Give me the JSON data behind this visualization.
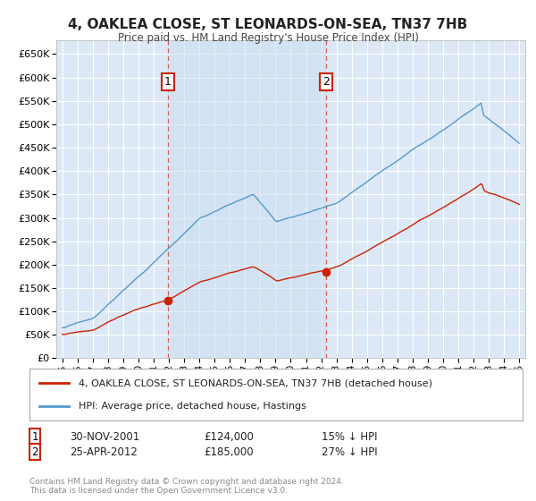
{
  "title": "4, OAKLEA CLOSE, ST LEONARDS-ON-SEA, TN37 7HB",
  "subtitle": "Price paid vs. HM Land Registry's House Price Index (HPI)",
  "legend_property": "4, OAKLEA CLOSE, ST LEONARDS-ON-SEA, TN37 7HB (detached house)",
  "legend_hpi": "HPI: Average price, detached house, Hastings",
  "footer": "Contains HM Land Registry data © Crown copyright and database right 2024.\nThis data is licensed under the Open Government Licence v3.0.",
  "sale1_label": "1",
  "sale1_date": "30-NOV-2001",
  "sale1_price": "£124,000",
  "sale1_hpi": "15% ↓ HPI",
  "sale1_year": 2001.92,
  "sale1_value": 124000,
  "sale2_label": "2",
  "sale2_date": "25-APR-2012",
  "sale2_price": "£185,000",
  "sale2_hpi": "27% ↓ HPI",
  "sale2_year": 2012.33,
  "sale2_value": 185000,
  "ylim": [
    0,
    680000
  ],
  "yticks": [
    0,
    50000,
    100000,
    150000,
    200000,
    250000,
    300000,
    350000,
    400000,
    450000,
    500000,
    550000,
    600000,
    650000
  ],
  "bg_color": "#dce8f5",
  "grid_color": "#ffffff",
  "red_color": "#cc2200",
  "blue_color": "#5599cc",
  "shade_color": "#c8ddf0"
}
